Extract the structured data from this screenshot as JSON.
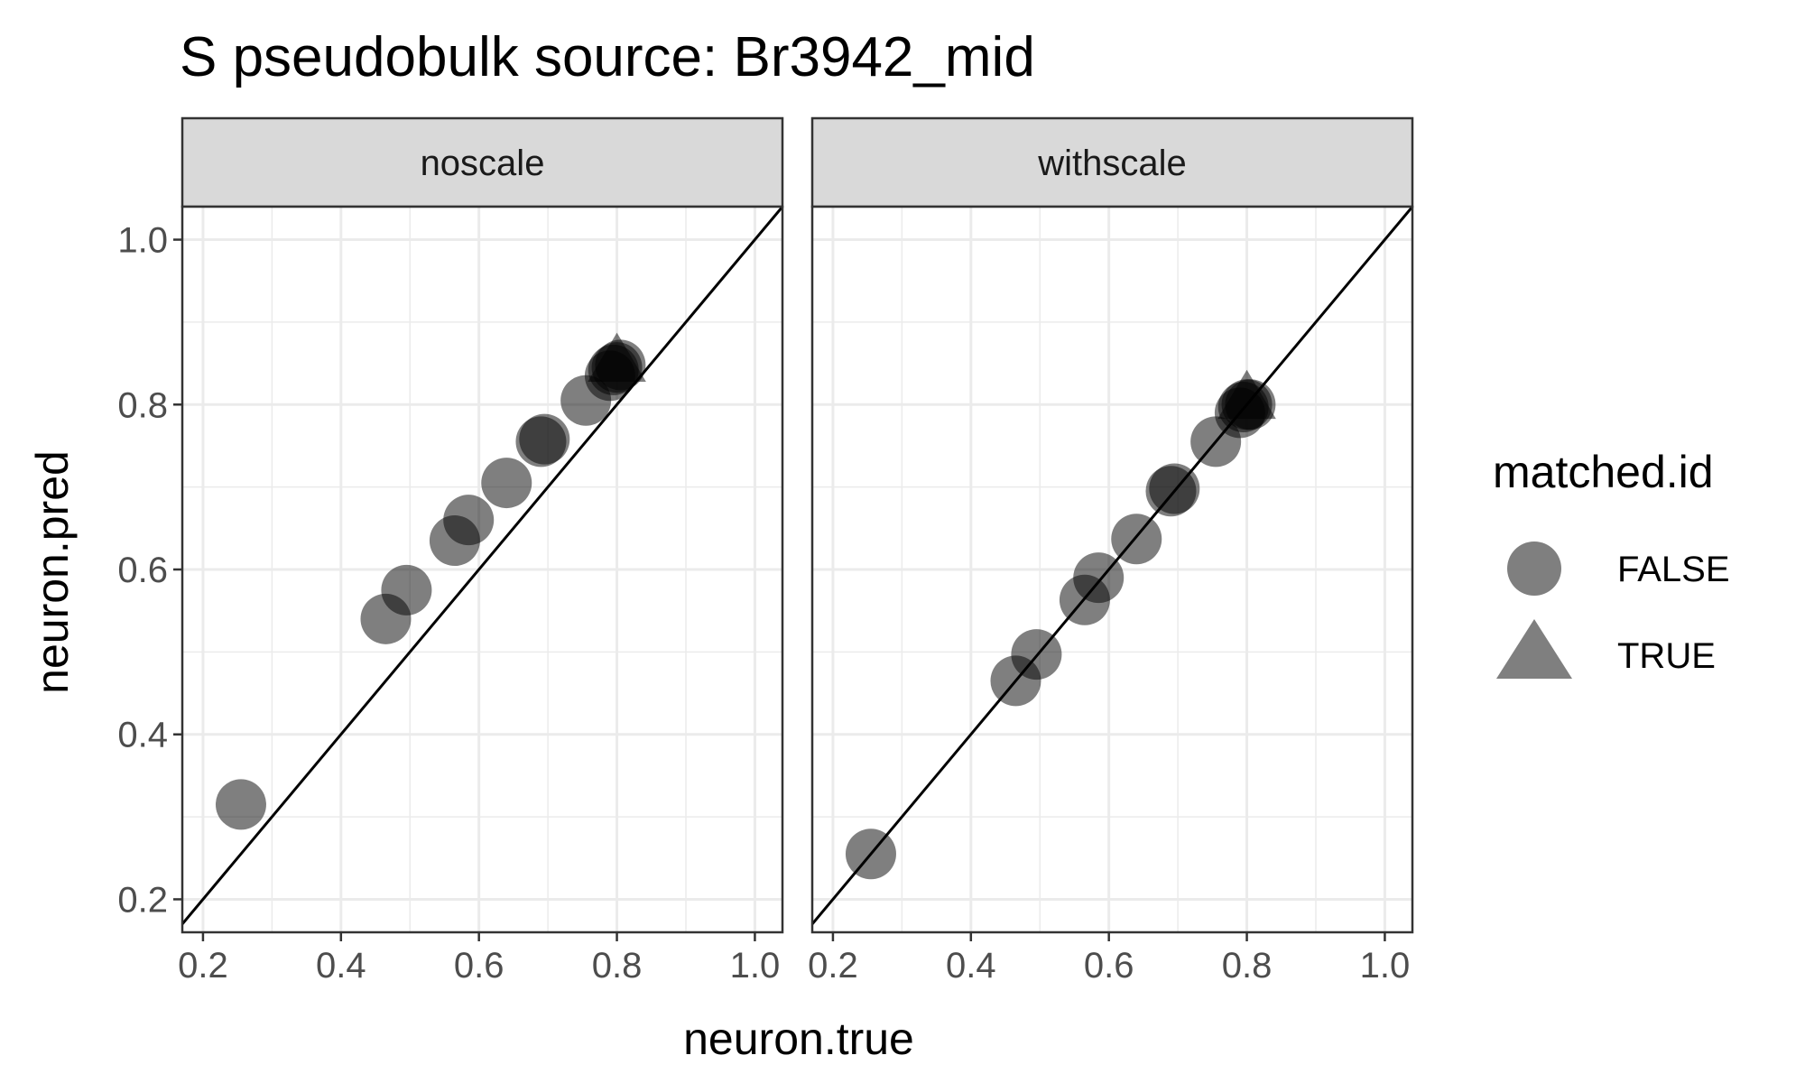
{
  "chart_data": {
    "type": "scatter",
    "title": "S pseudobulk source: Br3942_mid",
    "xlabel": "neuron.true",
    "ylabel": "neuron.pred",
    "xlim": [
      0.17,
      1.04
    ],
    "ylim": [
      0.16,
      1.04
    ],
    "xticks": [
      0.2,
      0.4,
      0.6,
      0.8,
      1.0
    ],
    "yticks": [
      0.2,
      0.4,
      0.6,
      0.8,
      1.0
    ],
    "tick_labels": [
      "0.2",
      "0.4",
      "0.6",
      "0.8",
      "1.0"
    ],
    "grid": true,
    "reference_line": "y = x",
    "legend": {
      "title": "matched.id",
      "placement": "right",
      "entries": [
        {
          "label": "FALSE",
          "shape": "circle"
        },
        {
          "label": "TRUE",
          "shape": "triangle"
        }
      ]
    },
    "colors": {
      "point": "#000000",
      "point_opacity": 0.5,
      "strip_fill": "#d9d9d9",
      "grid": "#ebebeb",
      "panel_border": "#333333"
    },
    "panels": [
      {
        "name": "noscale",
        "points": [
          {
            "x": 0.255,
            "y": 0.315,
            "matched": "FALSE"
          },
          {
            "x": 0.465,
            "y": 0.54,
            "matched": "FALSE"
          },
          {
            "x": 0.495,
            "y": 0.575,
            "matched": "FALSE"
          },
          {
            "x": 0.565,
            "y": 0.635,
            "matched": "FALSE"
          },
          {
            "x": 0.585,
            "y": 0.66,
            "matched": "FALSE"
          },
          {
            "x": 0.64,
            "y": 0.705,
            "matched": "FALSE"
          },
          {
            "x": 0.69,
            "y": 0.755,
            "matched": "FALSE"
          },
          {
            "x": 0.695,
            "y": 0.758,
            "matched": "FALSE"
          },
          {
            "x": 0.755,
            "y": 0.805,
            "matched": "FALSE"
          },
          {
            "x": 0.79,
            "y": 0.835,
            "matched": "FALSE"
          },
          {
            "x": 0.795,
            "y": 0.842,
            "matched": "FALSE"
          },
          {
            "x": 0.8,
            "y": 0.845,
            "matched": "FALSE"
          },
          {
            "x": 0.805,
            "y": 0.848,
            "matched": "FALSE"
          },
          {
            "x": 0.8,
            "y": 0.85,
            "matched": "TRUE"
          }
        ]
      },
      {
        "name": "withscale",
        "points": [
          {
            "x": 0.255,
            "y": 0.255,
            "matched": "FALSE"
          },
          {
            "x": 0.465,
            "y": 0.465,
            "matched": "FALSE"
          },
          {
            "x": 0.495,
            "y": 0.497,
            "matched": "FALSE"
          },
          {
            "x": 0.565,
            "y": 0.563,
            "matched": "FALSE"
          },
          {
            "x": 0.585,
            "y": 0.59,
            "matched": "FALSE"
          },
          {
            "x": 0.64,
            "y": 0.637,
            "matched": "FALSE"
          },
          {
            "x": 0.69,
            "y": 0.695,
            "matched": "FALSE"
          },
          {
            "x": 0.695,
            "y": 0.698,
            "matched": "FALSE"
          },
          {
            "x": 0.755,
            "y": 0.755,
            "matched": "FALSE"
          },
          {
            "x": 0.79,
            "y": 0.79,
            "matched": "FALSE"
          },
          {
            "x": 0.795,
            "y": 0.797,
            "matched": "FALSE"
          },
          {
            "x": 0.8,
            "y": 0.8,
            "matched": "FALSE"
          },
          {
            "x": 0.805,
            "y": 0.8,
            "matched": "FALSE"
          },
          {
            "x": 0.8,
            "y": 0.805,
            "matched": "TRUE"
          }
        ]
      }
    ]
  }
}
